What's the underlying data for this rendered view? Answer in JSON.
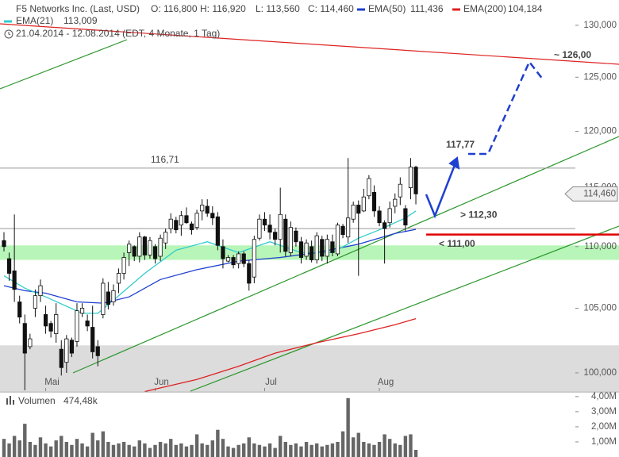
{
  "chart_data": [
    {
      "type": "candlestick",
      "title": "F5 Networks Inc. (Last, USD)",
      "subtitle": "21.04.2014 - 12.08.2014 (EDT, 4 Monate, 1 Tag)",
      "ohlc_labels": [
        {
          "value": 116.8,
          "label": "O: 116,800"
        },
        {
          "value": 116.92,
          "label": "H: 116,920"
        },
        {
          "value": 113.56,
          "label": "L: 113,560"
        },
        {
          "value": 114.46,
          "label": "C: 114,460"
        }
      ],
      "last_price": {
        "value": 114.46,
        "label": "114,460"
      },
      "categories": [
        null,
        null,
        null,
        null,
        null,
        null,
        null,
        null,
        "Mai",
        null,
        null,
        null,
        null,
        null,
        null,
        null,
        null,
        null,
        null,
        null,
        null,
        null,
        null,
        null,
        null,
        null,
        null,
        null,
        null,
        "Jun",
        null,
        null,
        null,
        null,
        null,
        null,
        null,
        null,
        null,
        null,
        null,
        null,
        null,
        null,
        null,
        null,
        null,
        null,
        null,
        null,
        "Jul",
        null,
        null,
        null,
        null,
        null,
        null,
        null,
        null,
        null,
        null,
        null,
        null,
        null,
        null,
        null,
        null,
        null,
        null,
        null,
        null,
        null,
        "Aug",
        null,
        null,
        null,
        null,
        null,
        null,
        null
      ],
      "open": [
        110.5,
        109.0,
        108.0,
        105.5,
        103.8,
        102.0,
        105.0,
        106.0,
        104.5,
        103.8,
        103.0,
        101.8,
        100.8,
        102.5,
        102.4,
        104.6,
        104.0,
        103.5,
        102.0,
        104.5,
        106.3,
        105.5,
        107.0,
        107.8,
        109.5,
        110.0,
        109.2,
        110.8,
        109.3,
        110.0,
        109.2,
        110.3,
        111.5,
        112.2,
        111.8,
        112.6,
        111.9,
        111.6,
        113.0,
        113.4,
        112.8,
        112.5,
        110.0,
        108.8,
        109.1,
        108.6,
        109.4,
        108.6,
        107.5,
        110.7,
        112.3,
        111.8,
        111.2,
        110.6,
        112.3,
        109.5,
        111.3,
        110.4,
        109.2,
        110.0,
        108.9,
        110.6,
        109.2,
        110.4,
        109.4,
        111.7,
        110.8,
        112.3,
        113.5,
        113.0,
        114.3,
        114.6,
        113.0,
        112.0,
        112.0,
        113.4,
        114.2,
        113.2,
        115.0,
        116.8
      ],
      "high": [
        111.2,
        109.5,
        112.7,
        106.0,
        104.5,
        103.0,
        106.5,
        107.3,
        105.2,
        104.0,
        105.4,
        102.5,
        102.9,
        102.7,
        105.4,
        105.4,
        104.5,
        105.2,
        102.5,
        107.4,
        107.1,
        106.9,
        108.2,
        109.5,
        110.5,
        110.1,
        111.2,
        110.9,
        110.8,
        110.2,
        111.0,
        111.5,
        112.8,
        112.5,
        113.0,
        113.3,
        112.1,
        113.1,
        114.0,
        114.0,
        113.4,
        112.9,
        110.6,
        109.3,
        109.3,
        109.6,
        109.6,
        108.9,
        110.9,
        112.7,
        112.9,
        112.7,
        111.5,
        115.0,
        112.7,
        112.1,
        111.6,
        110.8,
        110.6,
        110.5,
        111.2,
        110.9,
        111.0,
        111.0,
        112.0,
        111.9,
        117.6,
        113.8,
        113.9,
        114.9,
        116.1,
        115.2,
        113.4,
        112.2,
        113.8,
        114.5,
        115.9,
        113.5,
        117.6,
        116.92
      ],
      "low": [
        109.6,
        107.2,
        105.5,
        103.8,
        98.7,
        101.8,
        104.3,
        105.5,
        103.0,
        102.7,
        102.3,
        99.8,
        100.0,
        101.2,
        102.0,
        104.3,
        103.2,
        101.1,
        100.5,
        104.2,
        104.9,
        105.2,
        106.2,
        107.3,
        108.4,
        108.8,
        108.7,
        108.9,
        109.0,
        108.6,
        108.8,
        109.8,
        111.1,
        111.1,
        110.9,
        111.9,
        111.0,
        111.4,
        112.2,
        112.5,
        111.8,
        109.7,
        108.2,
        108.7,
        108.2,
        108.2,
        108.3,
        106.4,
        107.0,
        110.5,
        111.3,
        110.6,
        110.1,
        109.5,
        109.2,
        109.2,
        110.0,
        108.6,
        108.9,
        108.7,
        108.6,
        108.8,
        108.6,
        109.2,
        109.2,
        110.7,
        110.3,
        112.0,
        107.6,
        112.9,
        114.0,
        112.5,
        111.7,
        108.6,
        111.6,
        112.8,
        113.5,
        111.3,
        114.0,
        113.56
      ],
      "close": [
        110.0,
        107.8,
        106.5,
        104.3,
        101.5,
        102.6,
        106.0,
        106.8,
        103.6,
        103.2,
        104.5,
        100.4,
        102.6,
        101.5,
        104.8,
        105.0,
        103.6,
        101.6,
        101.3,
        107.0,
        105.3,
        106.4,
        107.8,
        109.1,
        110.2,
        109.2,
        110.8,
        109.3,
        110.5,
        109.0,
        110.7,
        111.2,
        112.3,
        111.4,
        112.6,
        112.0,
        111.4,
        112.8,
        113.5,
        112.8,
        112.4,
        110.1,
        109.0,
        109.1,
        108.5,
        109.4,
        108.6,
        107.0,
        110.6,
        112.3,
        111.8,
        111.2,
        110.6,
        112.7,
        109.6,
        111.6,
        110.4,
        109.1,
        110.3,
        108.9,
        110.9,
        109.2,
        110.6,
        109.5,
        111.8,
        111.0,
        112.4,
        113.5,
        112.8,
        114.2,
        115.8,
        113.0,
        112.0,
        111.5,
        113.2,
        114.0,
        115.3,
        111.8,
        116.8,
        114.46
      ],
      "series": [
        {
          "name": "EMA(50)",
          "color": "#1f3fd0",
          "last": {
            "value": 111.436,
            "label": "111,436"
          },
          "x": [
            0,
            4,
            8,
            14,
            19,
            24,
            30,
            37,
            45,
            53,
            60,
            68,
            75,
            79
          ],
          "values": [
            106.8,
            106.4,
            106.2,
            105.5,
            105.4,
            105.9,
            107.3,
            108.1,
            108.8,
            109.1,
            109.5,
            110.2,
            111.1,
            111.44
          ]
        },
        {
          "name": "EMA(200)",
          "color": "#dd2222",
          "last": {
            "value": 104.184,
            "label": "104,184"
          },
          "x": [
            27,
            37,
            45,
            52,
            60,
            68,
            75,
            79
          ],
          "values": [
            98.6,
            99.5,
            100.5,
            101.5,
            102.3,
            103.0,
            103.7,
            104.18
          ]
        },
        {
          "name": "EMA(21)",
          "color": "#33cccc",
          "last": {
            "value": 113.009,
            "label": "113,009"
          },
          "x": [
            0,
            4,
            8,
            15,
            18,
            22,
            27,
            33,
            39,
            45,
            51,
            57,
            63,
            68,
            72,
            77,
            79
          ],
          "values": [
            107.6,
            106.6,
            105.9,
            104.6,
            104.6,
            106.0,
            107.8,
            109.7,
            110.4,
            109.5,
            110.4,
            109.5,
            109.5,
            110.7,
            111.4,
            112.4,
            113.0
          ]
        }
      ],
      "levels": [
        {
          "value": 116.71,
          "label": "116,71"
        },
        {
          "value": 111.5
        }
      ],
      "zones": [
        {
          "from": 108.9,
          "to": 110.1,
          "color": "#b8f5b8"
        },
        {
          "from": 98.63,
          "to": 102.1,
          "color": "#dcdcdc"
        }
      ],
      "annotations": [
        {
          "value": 117.77,
          "label": "117,77",
          "color": "#1f3fd0"
        },
        {
          "value": 126,
          "label": "~ 126,00",
          "color": "#1f3fd0"
        },
        {
          "value": 112.3,
          "label": "> 112,30",
          "color": "#1f3fd0"
        },
        {
          "value": 111,
          "label": "< 111,00",
          "color": "#e00000"
        }
      ],
      "log_scale": true,
      "ylim": [
        98.63,
        132.5
      ],
      "yticks": [
        {
          "value": 100,
          "label": "100,000"
        },
        {
          "value": 105,
          "label": "105,000"
        },
        {
          "value": 110,
          "label": "110,000"
        },
        {
          "value": 115,
          "label": "115,000"
        },
        {
          "value": 120,
          "label": "120,000"
        },
        {
          "value": 125,
          "label": "125,000"
        },
        {
          "value": 130,
          "label": "130,000"
        }
      ]
    },
    {
      "type": "bar",
      "title": "Volumen",
      "last": {
        "value": 0.47448,
        "label": "474,48k"
      },
      "color": "#666666",
      "values": [
        1.2,
        0.9,
        1.4,
        1.1,
        2.2,
        1.0,
        0.8,
        1.3,
        0.9,
        0.7,
        1.1,
        1.4,
        1.0,
        0.8,
        1.2,
        0.9,
        0.7,
        1.6,
        1.1,
        1.7,
        1.0,
        0.8,
        0.9,
        1.0,
        0.8,
        0.7,
        1.1,
        0.9,
        0.6,
        0.8,
        1.0,
        0.9,
        1.2,
        0.8,
        0.9,
        0.7,
        0.8,
        1.5,
        0.9,
        0.8,
        1.1,
        1.8,
        1.2,
        0.7,
        0.6,
        0.8,
        0.9,
        1.3,
        0.9,
        0.8,
        0.7,
        0.9,
        0.6,
        1.4,
        1.0,
        0.8,
        0.9,
        0.7,
        1.0,
        0.8,
        0.9,
        0.7,
        0.8,
        0.9,
        1.0,
        1.7,
        3.9,
        1.3,
        1.6,
        1.0,
        0.9,
        0.8,
        1.0,
        1.5,
        1.2,
        0.9,
        0.8,
        1.4,
        1.5,
        0.47448
      ],
      "ylim": [
        0,
        4.15
      ],
      "yticks": [
        {
          "value": 1,
          "label": "1,00M"
        },
        {
          "value": 2,
          "label": "2,00M"
        },
        {
          "value": 3,
          "label": "3,00M"
        },
        {
          "value": 4,
          "label": "4,00M"
        }
      ]
    }
  ]
}
